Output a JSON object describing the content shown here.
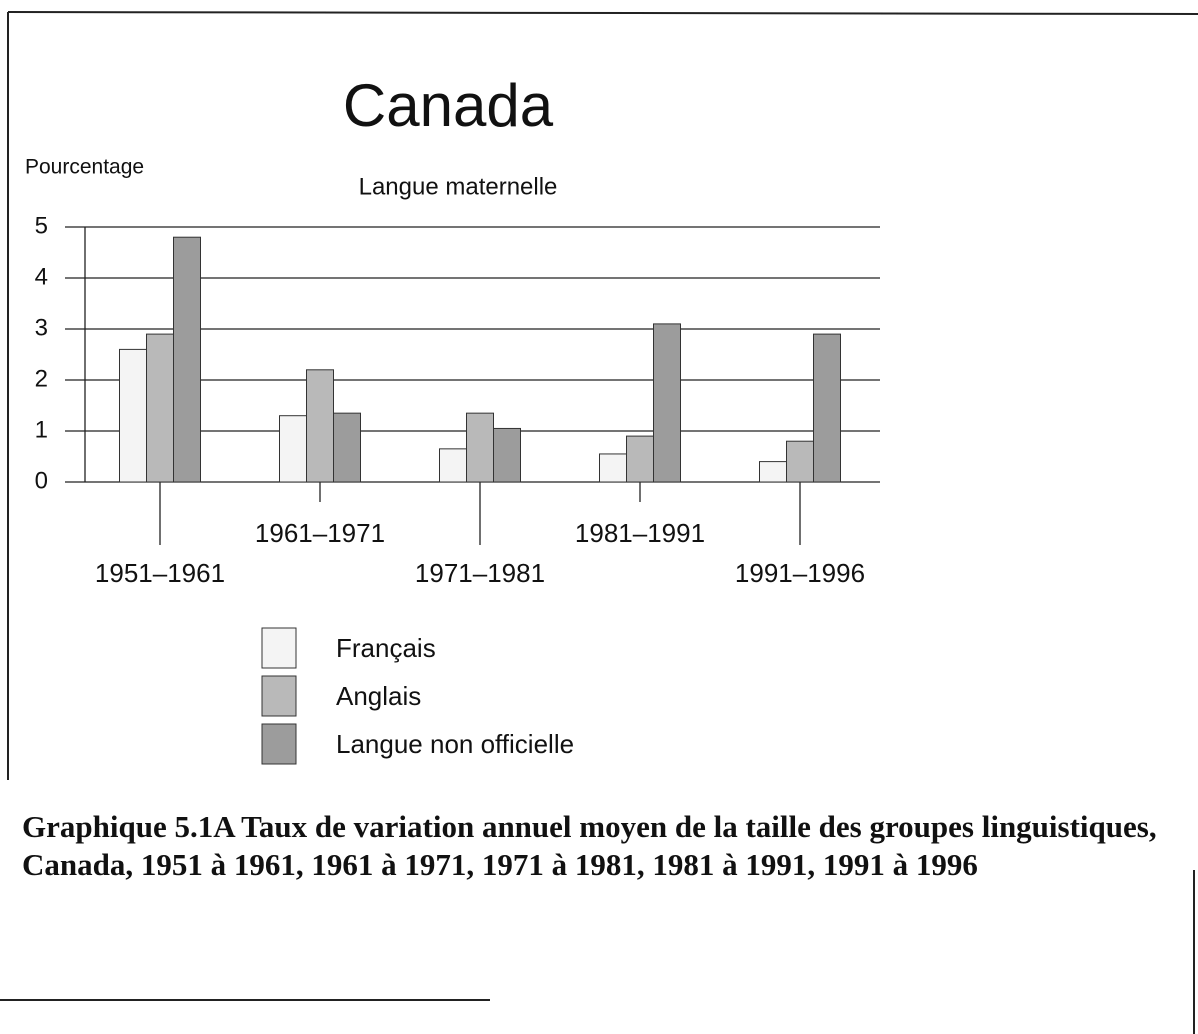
{
  "chart_data": {
    "type": "bar",
    "title": "Canada",
    "subtitle": "Langue maternelle",
    "y_label": "Pourcentage",
    "categories": [
      "1951–1961",
      "1961–1971",
      "1971–1981",
      "1981–1991",
      "1991–1996"
    ],
    "series": [
      {
        "name": "Français",
        "color": "#f4f4f4",
        "values": [
          2.6,
          1.3,
          0.65,
          0.55,
          0.4
        ]
      },
      {
        "name": "Anglais",
        "color": "#b9b9b9",
        "values": [
          2.9,
          2.2,
          1.35,
          0.9,
          0.8
        ]
      },
      {
        "name": "Langue non officielle",
        "color": "#9c9c9c",
        "values": [
          4.8,
          1.35,
          1.05,
          3.1,
          2.9
        ]
      }
    ],
    "ylim": [
      0,
      5
    ],
    "yticks": [
      0,
      1,
      2,
      3,
      4,
      5
    ],
    "grid": true
  },
  "caption": "Graphique 5.1A Taux de variation annuel moyen de la taille des groupes linguistiques, Canada, 1951 à 1961, 1961 à 1971, 1971 à 1981, 1981 à 1991, 1991 à 1996"
}
